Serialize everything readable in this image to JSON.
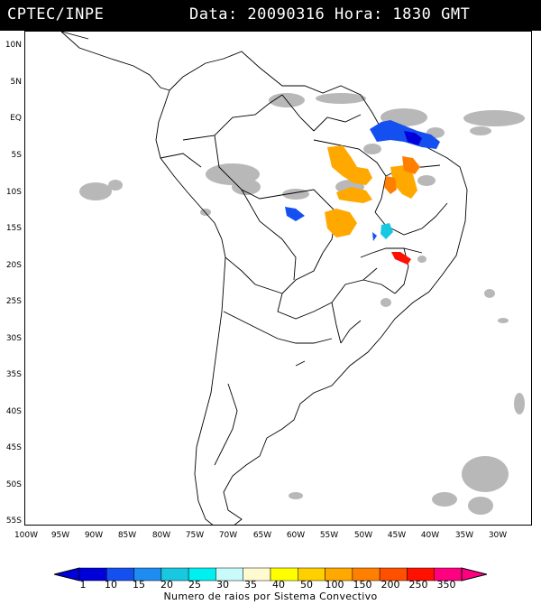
{
  "header": {
    "source": "CPTEC/INPE",
    "info": "Data: 20090316 Hora: 1830 GMT"
  },
  "map": {
    "lat_labels": [
      "10N",
      "5N",
      "EQ",
      "5S",
      "10S",
      "15S",
      "20S",
      "25S",
      "30S",
      "35S",
      "40S",
      "45S",
      "50S",
      "55S"
    ],
    "lon_labels": [
      "100W",
      "95W",
      "90W",
      "85W",
      "80W",
      "75W",
      "70W",
      "65W",
      "60W",
      "55W",
      "50W",
      "45W",
      "40W",
      "35W",
      "30W"
    ],
    "background_color": "#ffffff",
    "cloud_color": "#b8b8b8"
  },
  "colorbar": {
    "labels": [
      "1",
      "10",
      "15",
      "20",
      "25",
      "30",
      "35",
      "40",
      "50",
      "100",
      "150",
      "200",
      "250",
      "350"
    ],
    "colors": [
      "#0000d8",
      "#1450f0",
      "#1e8cf0",
      "#18c8e0",
      "#00f0f0",
      "#c8fafa",
      "#fffad0",
      "#ffff00",
      "#ffd000",
      "#ffa800",
      "#ff8000",
      "#ff5000",
      "#ff1000",
      "#ff0080"
    ],
    "title": "Numero de raios por Sistema Convectivo"
  }
}
